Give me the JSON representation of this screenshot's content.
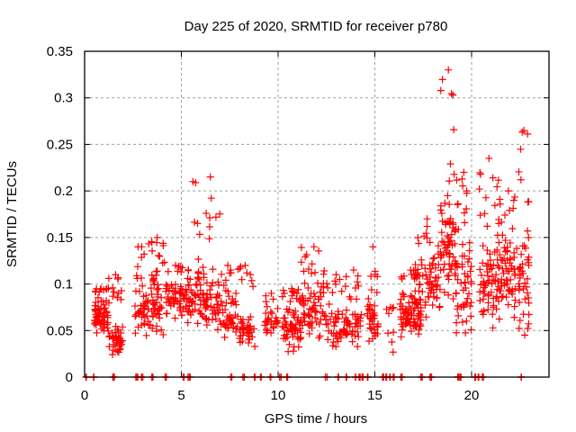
{
  "chart_data": {
    "type": "scatter",
    "title": "Day 225 of 2020, SRMTID for receiver p780",
    "xlabel": "GPS time / hours",
    "ylabel": "SRMTID / TECUs",
    "xlim": [
      0,
      24
    ],
    "ylim": [
      0,
      0.35
    ],
    "xticks": [
      0,
      5,
      10,
      15,
      20
    ],
    "xtick_labels": [
      "0",
      "5",
      "10",
      "15",
      "20"
    ],
    "yticks": [
      0,
      0.05,
      0.1,
      0.15,
      0.2,
      0.25,
      0.3,
      0.35
    ],
    "ytick_labels": [
      "0",
      "0.05",
      "0.1",
      "0.15",
      "0.2",
      "0.25",
      "0.3",
      "0.35"
    ],
    "grid": true,
    "legend": "none",
    "marker": "+",
    "color": "#ff0000",
    "clusters_note": "Dense point clouds summarised as clusters: [x_start_hour, x_end_hour, y_typical_low, y_typical_high, y_max, approx_count]",
    "clusters": [
      [
        0.5,
        1.2,
        0.045,
        0.09,
        0.095,
        60
      ],
      [
        1.2,
        2.0,
        0.02,
        0.06,
        0.11,
        60
      ],
      [
        2.6,
        3.3,
        0.04,
        0.1,
        0.14,
        45
      ],
      [
        3.3,
        4.2,
        0.04,
        0.12,
        0.15,
        55
      ],
      [
        4.2,
        5.2,
        0.06,
        0.11,
        0.12,
        55
      ],
      [
        5.2,
        6.0,
        0.05,
        0.13,
        0.21,
        55
      ],
      [
        6.0,
        7.0,
        0.04,
        0.12,
        0.215,
        60
      ],
      [
        7.0,
        7.8,
        0.04,
        0.09,
        0.12,
        40
      ],
      [
        7.8,
        8.8,
        0.03,
        0.07,
        0.12,
        50
      ],
      [
        9.3,
        10.0,
        0.04,
        0.08,
        0.09,
        30
      ],
      [
        10.2,
        11.2,
        0.025,
        0.08,
        0.095,
        70
      ],
      [
        11.2,
        12.5,
        0.04,
        0.11,
        0.14,
        70
      ],
      [
        12.5,
        13.5,
        0.03,
        0.09,
        0.11,
        45
      ],
      [
        13.5,
        14.3,
        0.03,
        0.08,
        0.115,
        40
      ],
      [
        14.6,
        15.2,
        0.03,
        0.09,
        0.14,
        40
      ],
      [
        15.6,
        16.0,
        0.02,
        0.07,
        0.075,
        8
      ],
      [
        16.3,
        17.4,
        0.04,
        0.1,
        0.115,
        80
      ],
      [
        17.0,
        18.4,
        0.06,
        0.14,
        0.17,
        75
      ],
      [
        18.4,
        19.2,
        0.08,
        0.2,
        0.33,
        70
      ],
      [
        19.2,
        20.0,
        0.04,
        0.15,
        0.22,
        55
      ],
      [
        20.4,
        21.4,
        0.05,
        0.15,
        0.235,
        70
      ],
      [
        21.4,
        22.4,
        0.06,
        0.15,
        0.2,
        70
      ],
      [
        22.4,
        23.0,
        0.04,
        0.16,
        0.265,
        45
      ]
    ],
    "zero_value_hours": [
      0.1,
      0.45,
      1.5,
      2.7,
      3.0,
      3.5,
      4.2,
      5.1,
      5.4,
      7.6,
      8.2,
      8.8,
      9.1,
      9.6,
      10.1,
      10.5,
      12.5,
      13.1,
      13.5,
      14.0,
      14.2,
      14.4,
      14.6,
      15.4,
      15.6,
      15.8,
      16.0,
      16.4,
      17.4,
      17.9,
      19.3,
      19.4,
      20.2,
      20.4,
      20.6,
      22.6
    ]
  }
}
